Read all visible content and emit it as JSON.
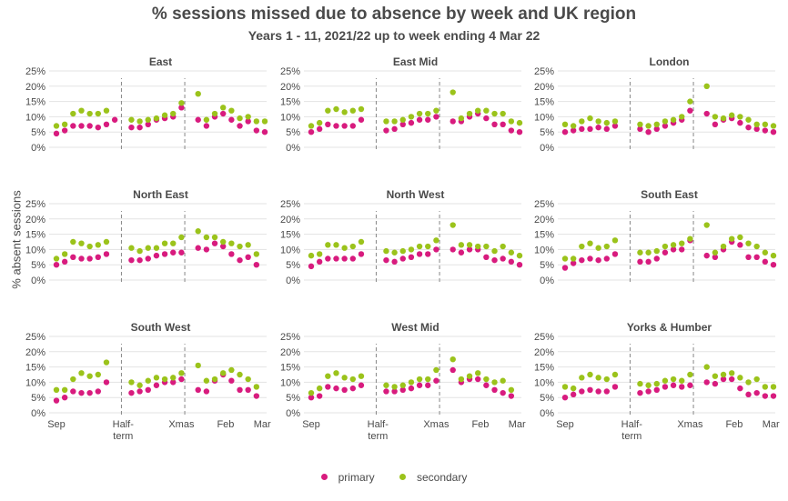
{
  "title": "% sessions missed due to absence by week and UK region",
  "subtitle": "Years 1 - 11, 2021/22 up to week ending 4 Mar 22",
  "colors": {
    "primary": "#d81b7e",
    "secondary": "#9bc31b",
    "grid": "#e3e3e3",
    "marker": "#888888",
    "text": "#4a4a4a"
  },
  "chart_data": {
    "type": "scatter",
    "layout": "facets 3x3",
    "ylabel": "% absent sessions",
    "ylim": [
      0,
      25
    ],
    "yticks": [
      "0%",
      "5%",
      "10%",
      "15%",
      "20%",
      "25%"
    ],
    "xticks": [
      {
        "week": 0,
        "label": "Sep"
      },
      {
        "week": 8,
        "label": "Half-\nterm"
      },
      {
        "week": 15,
        "label": "Xmas"
      },
      {
        "week": 20.3,
        "label": "Feb"
      },
      {
        "week": 24.7,
        "label": "Mar"
      }
    ],
    "reference_lines": [
      {
        "week": 7.8,
        "label": "Half-term"
      },
      {
        "week": 15.4,
        "label": "Xmas"
      }
    ],
    "legend": {
      "position": "bottom",
      "entries": [
        "primary",
        "secondary"
      ]
    },
    "weeks": [
      0,
      1,
      2,
      3,
      4,
      5,
      6,
      7,
      9,
      10,
      11,
      12,
      13,
      14,
      15,
      17,
      18,
      19,
      20,
      21,
      22,
      23,
      24,
      25
    ],
    "panels": [
      {
        "name": "East",
        "series": [
          {
            "name": "primary",
            "values": [
              4.5,
              5.5,
              7,
              7,
              7,
              6.5,
              7.5,
              9,
              6.5,
              6.5,
              7.5,
              9,
              9.5,
              10,
              13,
              9,
              7,
              10,
              11,
              9,
              7,
              8.5,
              5.5,
              5
            ]
          },
          {
            "name": "secondary",
            "values": [
              7,
              7.5,
              11,
              12,
              11,
              11,
              12,
              null,
              9,
              8.5,
              9,
              9.5,
              10.5,
              11,
              14.5,
              17.5,
              9,
              11,
              13,
              12,
              9.5,
              10,
              8.5,
              8.5
            ]
          }
        ]
      },
      {
        "name": "East Mid",
        "series": [
          {
            "name": "primary",
            "values": [
              5,
              6,
              7.5,
              7,
              7,
              7,
              9,
              null,
              5.5,
              6,
              7.5,
              8,
              9,
              9,
              10,
              8.5,
              8.5,
              10,
              11,
              9.5,
              7.5,
              7.5,
              5.5,
              5
            ]
          },
          {
            "name": "secondary",
            "values": [
              7,
              8,
              12,
              12.5,
              11.5,
              12,
              12.5,
              null,
              8.5,
              8.5,
              9,
              10,
              11,
              11,
              12,
              18,
              9.5,
              11,
              12,
              12,
              11,
              11,
              8.5,
              8
            ]
          }
        ]
      },
      {
        "name": "London",
        "series": [
          {
            "name": "primary",
            "values": [
              5,
              5.5,
              6,
              6,
              6.5,
              6,
              7,
              null,
              6,
              5,
              6,
              7,
              8,
              9,
              12,
              11,
              7.5,
              9,
              9.5,
              8,
              6.5,
              6,
              5.5,
              5
            ]
          },
          {
            "name": "secondary",
            "values": [
              7.5,
              7,
              8.5,
              9.5,
              8.5,
              8,
              8.5,
              null,
              7.5,
              7,
              7.5,
              8.5,
              9,
              10,
              15,
              20,
              10,
              9.5,
              10.5,
              10,
              9,
              7.5,
              7.5,
              7
            ]
          }
        ]
      },
      {
        "name": "North East",
        "series": [
          {
            "name": "primary",
            "values": [
              5,
              6,
              7.5,
              7,
              7,
              7.5,
              8.5,
              null,
              6.5,
              6.5,
              7,
              8,
              8.5,
              9,
              9,
              10.5,
              10,
              12,
              11,
              8.5,
              6.5,
              7.5,
              5,
              null
            ]
          },
          {
            "name": "secondary",
            "values": [
              7,
              8.5,
              12.5,
              12,
              11,
              11.5,
              12.5,
              null,
              10.5,
              9.5,
              10.5,
              10.5,
              12,
              12,
              14,
              16,
              14,
              14,
              12.5,
              12,
              11,
              11.5,
              8.5,
              null
            ]
          }
        ]
      },
      {
        "name": "North West",
        "series": [
          {
            "name": "primary",
            "values": [
              4.5,
              6,
              7,
              7,
              7,
              7,
              8.5,
              null,
              6.5,
              6,
              7,
              7.5,
              8.5,
              8.5,
              10,
              10,
              9,
              10,
              10,
              7.5,
              6.5,
              7,
              6,
              5
            ]
          },
          {
            "name": "secondary",
            "values": [
              8,
              8.5,
              11.5,
              11.5,
              10.5,
              11,
              12.5,
              null,
              9.5,
              9,
              9.5,
              10,
              11,
              11,
              13,
              18,
              11.5,
              11.5,
              11,
              11,
              9.5,
              11,
              9,
              8
            ]
          }
        ]
      },
      {
        "name": "South East",
        "series": [
          {
            "name": "primary",
            "values": [
              4,
              5.5,
              6.5,
              7,
              6.5,
              7,
              8.5,
              null,
              6,
              6,
              7,
              9,
              10,
              10,
              13,
              8,
              7.5,
              10,
              12.5,
              11.5,
              7.5,
              7.5,
              6,
              5
            ]
          },
          {
            "name": "secondary",
            "values": [
              7,
              7,
              11,
              12,
              10.5,
              11,
              13,
              null,
              9,
              9,
              9.5,
              11,
              11.5,
              12,
              13.5,
              18,
              9,
              11,
              13.5,
              14,
              12,
              11,
              9,
              8
            ]
          }
        ]
      },
      {
        "name": "South West",
        "series": [
          {
            "name": "primary",
            "values": [
              4,
              5,
              7,
              6.5,
              6.5,
              7,
              10,
              null,
              6.5,
              7,
              7.5,
              9,
              10,
              10,
              11,
              7.5,
              7,
              10.5,
              12.5,
              10.5,
              7.5,
              7.5,
              5.5,
              null
            ]
          },
          {
            "name": "secondary",
            "values": [
              7.5,
              7.5,
              11,
              13,
              12,
              12.5,
              16.5,
              null,
              10,
              9,
              10.5,
              11.5,
              11,
              11.5,
              13,
              15.5,
              10.5,
              11,
              13,
              14,
              12.5,
              11,
              8.5,
              null
            ]
          }
        ]
      },
      {
        "name": "West Mid",
        "series": [
          {
            "name": "primary",
            "values": [
              5,
              5.5,
              8.5,
              8,
              7.5,
              8,
              9,
              null,
              7,
              7,
              7.5,
              8,
              9,
              9,
              10.5,
              14,
              10,
              11,
              11,
              9,
              7.5,
              6.5,
              5.5,
              null
            ]
          },
          {
            "name": "secondary",
            "values": [
              6.5,
              8,
              12,
              13,
              11.5,
              11,
              12,
              null,
              9,
              8.5,
              9,
              10,
              11,
              11,
              14,
              17.5,
              11,
              12,
              13,
              11,
              10,
              10.5,
              7.5,
              null
            ]
          }
        ]
      },
      {
        "name": "Yorks & Humber",
        "series": [
          {
            "name": "primary",
            "values": [
              5,
              6,
              7,
              7.5,
              7,
              7,
              8.5,
              null,
              6.5,
              7,
              7.5,
              8.5,
              9,
              8.5,
              9,
              10,
              9.5,
              11,
              11,
              8,
              6,
              6.5,
              5.5,
              5.5
            ]
          },
          {
            "name": "secondary",
            "values": [
              8.5,
              8,
              11.5,
              12.5,
              11.5,
              11,
              12.5,
              null,
              9.5,
              9,
              9.5,
              10.5,
              11,
              10.5,
              12.5,
              15,
              12,
              12.5,
              13,
              11.5,
              10,
              11,
              8.5,
              8.5
            ]
          }
        ]
      }
    ]
  }
}
